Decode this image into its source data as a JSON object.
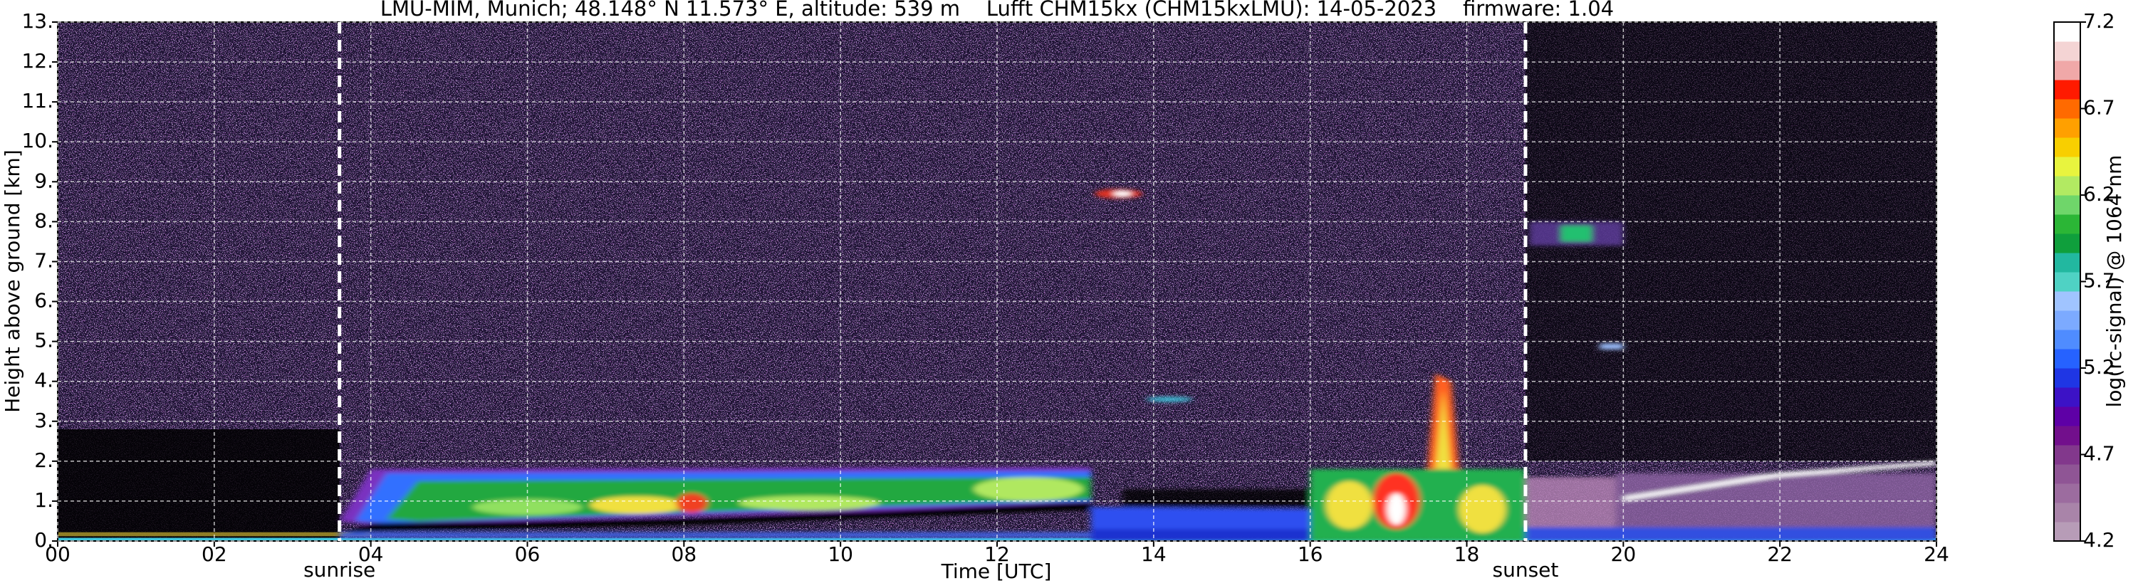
{
  "chart_data": {
    "type": "heatmap",
    "title": "LMU-MIM, Munich; 48.148° N 11.573° E, altitude: 539 m    Lufft CHM15kx (CHM15kxLMU): 14-05-2023    firmware: 1.04",
    "x_label": "Time [UTC]",
    "y_label": "Height above ground [km]",
    "xlim": [
      0,
      24
    ],
    "xticks": [
      {
        "value": 0,
        "label": "00"
      },
      {
        "value": 2,
        "label": "02"
      },
      {
        "value": 4,
        "label": "04"
      },
      {
        "value": 6,
        "label": "06"
      },
      {
        "value": 8,
        "label": "08"
      },
      {
        "value": 10,
        "label": "10"
      },
      {
        "value": 12,
        "label": "12"
      },
      {
        "value": 14,
        "label": "14"
      },
      {
        "value": 16,
        "label": "16"
      },
      {
        "value": 18,
        "label": "18"
      },
      {
        "value": 20,
        "label": "20"
      },
      {
        "value": 22,
        "label": "22"
      },
      {
        "value": 24,
        "label": "24"
      }
    ],
    "ylim": [
      0,
      13
    ],
    "yticks": [
      {
        "value": 0,
        "label": "0."
      },
      {
        "value": 1,
        "label": "1."
      },
      {
        "value": 2,
        "label": "2."
      },
      {
        "value": 3,
        "label": "3."
      },
      {
        "value": 4,
        "label": "4."
      },
      {
        "value": 5,
        "label": "5."
      },
      {
        "value": 6,
        "label": "6."
      },
      {
        "value": 7,
        "label": "7."
      },
      {
        "value": 8,
        "label": "8."
      },
      {
        "value": 9,
        "label": "9."
      },
      {
        "value": 10,
        "label": "10."
      },
      {
        "value": 11,
        "label": "11."
      },
      {
        "value": 12,
        "label": "12."
      },
      {
        "value": 13,
        "label": "13."
      }
    ],
    "grid": true,
    "annotations": [
      {
        "label": "sunrise",
        "x": 3.6
      },
      {
        "label": "sunset",
        "x": 18.75
      }
    ],
    "colorbar": {
      "label": "log(rc-signal) @ 1064 nm",
      "lim": [
        4.2,
        7.2
      ],
      "ticks": [
        4.2,
        4.7,
        5.2,
        5.7,
        6.2,
        6.7,
        7.2
      ],
      "colors": [
        "#b79cb7",
        "#a984a9",
        "#9c6c9f",
        "#8f5595",
        "#82388c",
        "#720f8c",
        "#5e00a6",
        "#3c12c6",
        "#1f36e4",
        "#2662ff",
        "#4f8cff",
        "#7caaff",
        "#a0c4ff",
        "#4fd2c4",
        "#22b8a0",
        "#0f9f3c",
        "#2bb636",
        "#6fd66a",
        "#b2ea62",
        "#e8f43e",
        "#f8cf00",
        "#ffa000",
        "#ff6a00",
        "#ff1a00",
        "#f0a8a8",
        "#f4d4d4",
        "#ffffff"
      ]
    }
  }
}
